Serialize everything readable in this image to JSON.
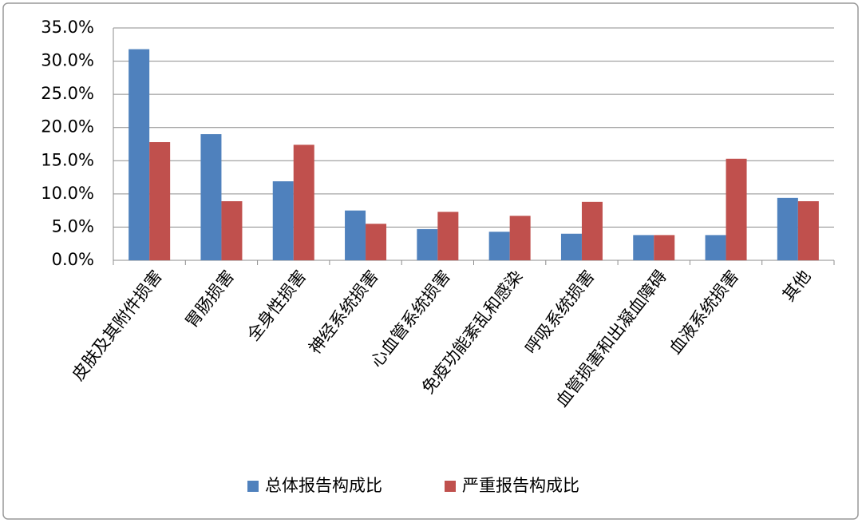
{
  "chart_data": {
    "type": "bar",
    "categories": [
      "皮肤及其附件损害",
      "胃肠损害",
      "全身性损害",
      "神经系统损害",
      "心血管系统损害",
      "免疫功能紊乱和感染",
      "呼吸系统损害",
      "血管损害和出凝血障碍",
      "血液系统损害",
      "其他"
    ],
    "series": [
      {
        "name": "总体报告构成比",
        "color": "#4f81bd",
        "values": [
          31.8,
          19.0,
          11.9,
          7.5,
          4.7,
          4.3,
          4.0,
          3.8,
          3.8,
          9.4
        ]
      },
      {
        "name": "严重报告构成比",
        "color": "#c0504d",
        "values": [
          17.8,
          8.9,
          17.4,
          5.5,
          7.3,
          6.7,
          8.8,
          3.8,
          15.3,
          8.9
        ]
      }
    ],
    "ylim": [
      0,
      35
    ],
    "yticks": [
      {
        "value": 0,
        "label": "0.0%"
      },
      {
        "value": 5,
        "label": "5.0%"
      },
      {
        "value": 10,
        "label": "10.0%"
      },
      {
        "value": 15,
        "label": "15.0%"
      },
      {
        "value": 20,
        "label": "20.0%"
      },
      {
        "value": 25,
        "label": "25.0%"
      },
      {
        "value": 30,
        "label": "30.0%"
      },
      {
        "value": 35,
        "label": "35.0%"
      }
    ],
    "grid": true,
    "legend": "bottom"
  }
}
